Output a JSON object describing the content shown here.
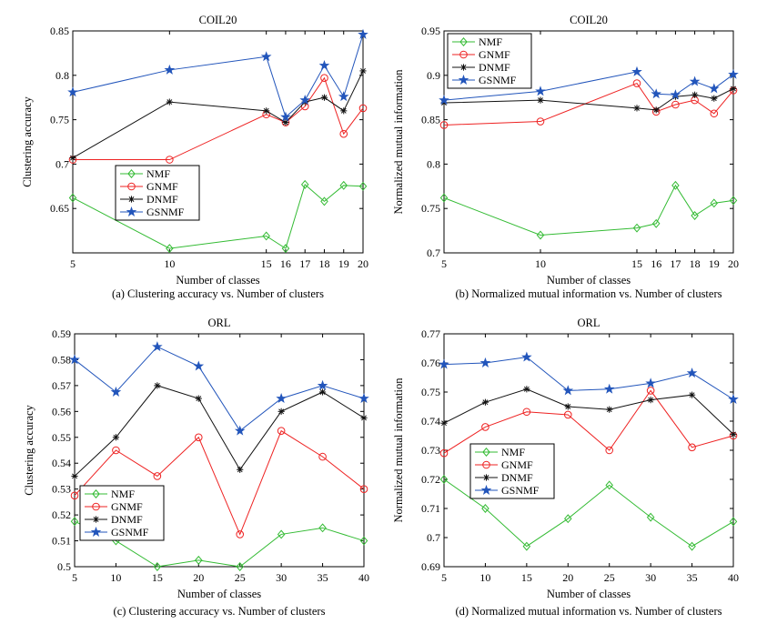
{
  "colors": {
    "NMF": "#33bb33",
    "GNMF": "#ee2222",
    "DNMF": "#111111",
    "GSNMF": "#2255bb"
  },
  "chart_data": [
    {
      "type": "line",
      "title": "COIL20",
      "xlabel": "Number of classes",
      "ylabel": "Clustering accuracy",
      "caption": "(a) Clustering accuracy vs. Number of clusters",
      "x": [
        5,
        10,
        15,
        16,
        17,
        18,
        19,
        20
      ],
      "xlim": [
        5,
        20
      ],
      "xticks": [
        5,
        10,
        15,
        16,
        17,
        18,
        19,
        20
      ],
      "ylim": [
        0.6,
        0.85
      ],
      "yticks": [
        0.65,
        0.7,
        0.75,
        0.8,
        0.85
      ],
      "ytick_labels": [
        "0.65",
        "0.7",
        "0.75",
        "0.8",
        "0.85"
      ],
      "legend_position": "lower-left",
      "series": [
        {
          "name": "NMF",
          "marker": "diamond",
          "values": [
            0.662,
            0.605,
            0.619,
            0.605,
            0.677,
            0.658,
            0.676,
            0.675
          ]
        },
        {
          "name": "GNMF",
          "marker": "circle",
          "values": [
            0.705,
            0.705,
            0.756,
            0.747,
            0.765,
            0.797,
            0.734,
            0.763
          ]
        },
        {
          "name": "DNMF",
          "marker": "asterisk",
          "values": [
            0.707,
            0.77,
            0.76,
            0.747,
            0.77,
            0.775,
            0.76,
            0.805
          ]
        },
        {
          "name": "GSNMF",
          "marker": "star",
          "values": [
            0.781,
            0.806,
            0.821,
            0.753,
            0.772,
            0.811,
            0.776,
            0.846
          ]
        }
      ]
    },
    {
      "type": "line",
      "title": "COIL20",
      "xlabel": "Number of classes",
      "ylabel": "Normalized mutual information",
      "caption": "(b) Normalized mutual information vs. Number of clusters",
      "x": [
        5,
        10,
        15,
        16,
        17,
        18,
        19,
        20
      ],
      "xlim": [
        5,
        20
      ],
      "xticks": [
        5,
        10,
        15,
        16,
        17,
        18,
        19,
        20
      ],
      "ylim": [
        0.7,
        0.95
      ],
      "yticks": [
        0.7,
        0.75,
        0.8,
        0.85,
        0.9,
        0.95
      ],
      "ytick_labels": [
        "0.7",
        "0.75",
        "0.8",
        "0.85",
        "0.9",
        "0.95"
      ],
      "legend_position": "top-left",
      "series": [
        {
          "name": "NMF",
          "marker": "diamond",
          "values": [
            0.762,
            0.72,
            0.728,
            0.733,
            0.776,
            0.742,
            0.756,
            0.759
          ]
        },
        {
          "name": "GNMF",
          "marker": "circle",
          "values": [
            0.844,
            0.848,
            0.891,
            0.859,
            0.867,
            0.872,
            0.857,
            0.883
          ]
        },
        {
          "name": "DNMF",
          "marker": "asterisk",
          "values": [
            0.869,
            0.872,
            0.863,
            0.861,
            0.876,
            0.878,
            0.874,
            0.885
          ]
        },
        {
          "name": "GSNMF",
          "marker": "star",
          "values": [
            0.872,
            0.882,
            0.904,
            0.879,
            0.878,
            0.893,
            0.885,
            0.901
          ]
        }
      ]
    },
    {
      "type": "line",
      "title": "ORL",
      "xlabel": "Number of classes",
      "ylabel": "Clustering accuracy",
      "caption": "(c) Clustering accuracy vs. Number of clusters",
      "x": [
        5,
        10,
        15,
        20,
        25,
        30,
        35,
        40
      ],
      "xlim": [
        5,
        40
      ],
      "xticks": [
        5,
        10,
        15,
        20,
        25,
        30,
        35,
        40
      ],
      "ylim": [
        0.5,
        0.59
      ],
      "yticks": [
        0.5,
        0.51,
        0.52,
        0.53,
        0.54,
        0.55,
        0.56,
        0.57,
        0.58,
        0.59
      ],
      "ytick_labels": [
        "0.5",
        "0.51",
        "0.52",
        "0.53",
        "0.54",
        "0.55",
        "0.56",
        "0.57",
        "0.58",
        "0.59"
      ],
      "legend_position": "lower-left",
      "series": [
        {
          "name": "NMF",
          "marker": "diamond",
          "values": [
            0.5175,
            0.51,
            0.5,
            0.5025,
            0.5,
            0.5125,
            0.515,
            0.51
          ]
        },
        {
          "name": "GNMF",
          "marker": "circle",
          "values": [
            0.5275,
            0.545,
            0.535,
            0.55,
            0.5125,
            0.5525,
            0.5425,
            0.53
          ]
        },
        {
          "name": "DNMF",
          "marker": "asterisk",
          "values": [
            0.535,
            0.55,
            0.57,
            0.565,
            0.5375,
            0.56,
            0.5675,
            0.5575
          ]
        },
        {
          "name": "GSNMF",
          "marker": "star",
          "values": [
            0.58,
            0.5675,
            0.585,
            0.5775,
            0.5525,
            0.565,
            0.57,
            0.565
          ]
        }
      ]
    },
    {
      "type": "line",
      "title": "ORL",
      "xlabel": "Number of classes",
      "ylabel": "Normalized mutual information",
      "caption": "(d) Normalized mutual information vs. Number of clusters",
      "x": [
        5,
        10,
        15,
        20,
        25,
        30,
        35,
        40
      ],
      "xlim": [
        5,
        40
      ],
      "xticks": [
        5,
        10,
        15,
        20,
        25,
        30,
        35,
        40
      ],
      "ylim": [
        0.69,
        0.77
      ],
      "yticks": [
        0.69,
        0.7,
        0.71,
        0.72,
        0.73,
        0.74,
        0.75,
        0.76,
        0.77
      ],
      "ytick_labels": [
        "0.69",
        "0.7",
        "0.71",
        "0.72",
        "0.73",
        "0.74",
        "0.75",
        "0.76",
        "0.77"
      ],
      "legend_position": "middle-left",
      "series": [
        {
          "name": "NMF",
          "marker": "diamond",
          "values": [
            0.72,
            0.71,
            0.697,
            0.7065,
            0.718,
            0.707,
            0.697,
            0.7055
          ]
        },
        {
          "name": "GNMF",
          "marker": "circle",
          "values": [
            0.729,
            0.738,
            0.7432,
            0.7422,
            0.73,
            0.7505,
            0.731,
            0.735
          ]
        },
        {
          "name": "DNMF",
          "marker": "asterisk",
          "values": [
            0.7393,
            0.7465,
            0.751,
            0.745,
            0.744,
            0.7473,
            0.749,
            0.7355
          ]
        },
        {
          "name": "GSNMF",
          "marker": "star",
          "values": [
            0.7595,
            0.76,
            0.762,
            0.7505,
            0.751,
            0.753,
            0.7565,
            0.7475
          ]
        }
      ]
    }
  ]
}
